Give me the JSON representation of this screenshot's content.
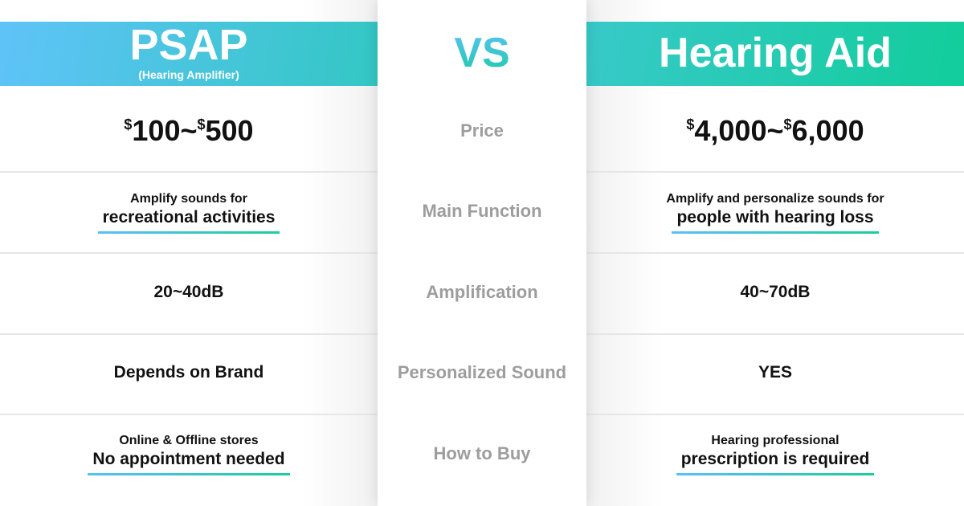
{
  "left": {
    "title": "PSAP",
    "subtitle": "(Hearing Amplifier)",
    "price": {
      "s1": "$",
      "v1": "100~",
      "s2": "$",
      "v2": "500"
    },
    "function": {
      "line1": "Amplify sounds for",
      "line2": "recreational activities"
    },
    "amplification": "20~40dB",
    "personalized": "Depends on Brand",
    "buy": {
      "line1": "Online & Offline stores",
      "line2": "No appointment needed"
    }
  },
  "middle": {
    "vs": "VS",
    "labels": [
      "Price",
      "Main Function",
      "Amplification",
      "Personalized Sound",
      "How to Buy"
    ]
  },
  "right": {
    "title": "Hearing Aid",
    "price": {
      "s1": "$",
      "v1": "4,000~",
      "s2": "$",
      "v2": "6,000"
    },
    "function": {
      "line1": "Amplify and personalize sounds for",
      "line2": "people with hearing loss"
    },
    "amplification": "40~70dB",
    "personalized": "YES",
    "buy": {
      "line1": "Hearing professional",
      "line2": "prescription is required"
    }
  },
  "colors": {
    "blue": "#5fc3f8",
    "teal": "#33c7c4",
    "green": "#12cd9b"
  }
}
